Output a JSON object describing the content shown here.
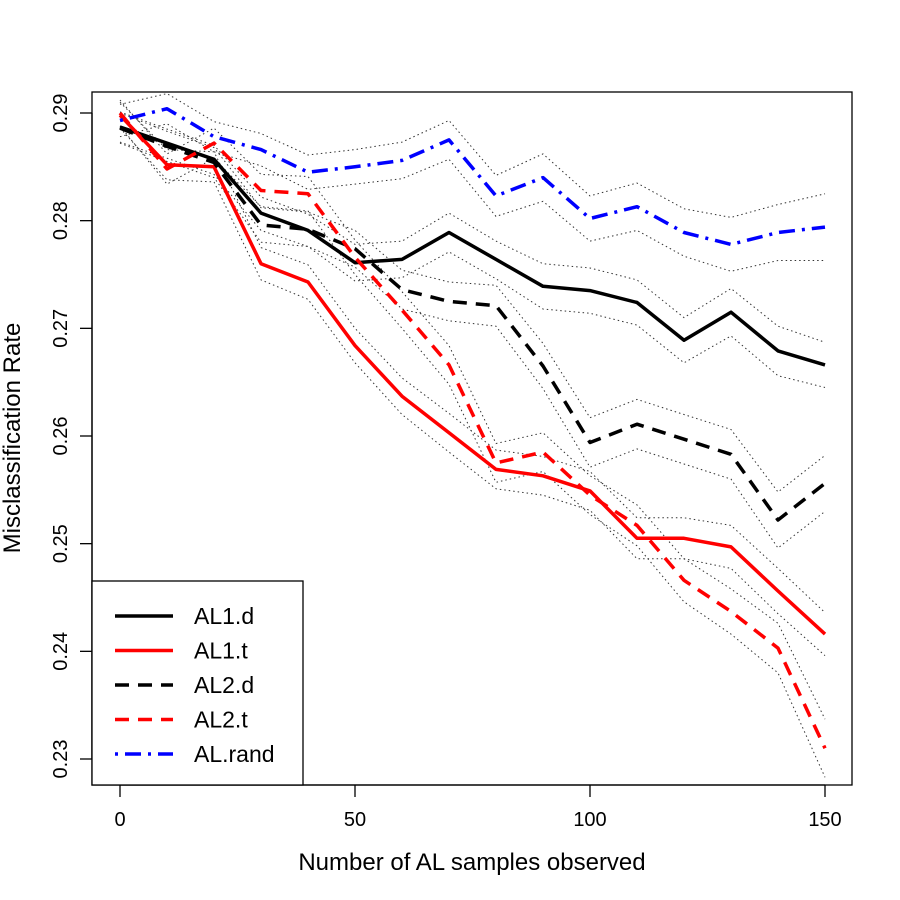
{
  "chart_data": {
    "type": "line",
    "title": "",
    "xlabel": "Number of AL samples observed",
    "ylabel": "Misclassification Rate",
    "xlim": [
      0,
      150
    ],
    "ylim": [
      0.23,
      0.29
    ],
    "x_ticks": [
      0,
      50,
      100,
      150
    ],
    "y_ticks": [
      0.23,
      0.24,
      0.25,
      0.26,
      0.27,
      0.28,
      0.29
    ],
    "x_tick_labels": [
      "0",
      "50",
      "100",
      "150"
    ],
    "y_tick_labels": [
      "0.23",
      "0.24",
      "0.25",
      "0.26",
      "0.27",
      "0.28",
      "0.29"
    ],
    "grid": false,
    "legend_position": "bottom-left",
    "x": [
      0,
      10,
      20,
      30,
      40,
      50,
      60,
      70,
      80,
      90,
      100,
      110,
      120,
      130,
      140,
      150
    ],
    "series": [
      {
        "name": "AL1.d",
        "color": "#000000",
        "line_style": "solid",
        "values": [
          0.2887,
          0.2872,
          0.2857,
          0.2807,
          0.2791,
          0.2761,
          0.2764,
          0.2789,
          0.2764,
          0.2739,
          0.2735,
          0.2724,
          0.2689,
          0.2715,
          0.2679,
          0.2666
        ],
        "band_upper": [
          0.2901,
          0.2885,
          0.287,
          0.2822,
          0.2806,
          0.2778,
          0.2781,
          0.2807,
          0.2781,
          0.276,
          0.2756,
          0.2745,
          0.271,
          0.2737,
          0.2702,
          0.2687
        ],
        "band_lower": [
          0.2873,
          0.2858,
          0.2843,
          0.2791,
          0.2776,
          0.2744,
          0.2747,
          0.2771,
          0.2746,
          0.2718,
          0.2714,
          0.2703,
          0.2668,
          0.2693,
          0.2656,
          0.2645
        ]
      },
      {
        "name": "AL1.t",
        "color": "#ff0000",
        "line_style": "solid",
        "values": [
          0.2898,
          0.2852,
          0.285,
          0.276,
          0.2743,
          0.2684,
          0.2637,
          0.2603,
          0.2569,
          0.2563,
          0.2549,
          0.2505,
          0.2505,
          0.2497,
          0.2456,
          0.2416
        ],
        "band_upper": [
          0.291,
          0.2866,
          0.2864,
          0.2775,
          0.2759,
          0.27,
          0.2654,
          0.2621,
          0.2587,
          0.2581,
          0.2567,
          0.2524,
          0.2524,
          0.2517,
          0.2477,
          0.2436
        ],
        "band_lower": [
          0.2886,
          0.2838,
          0.2836,
          0.2745,
          0.2727,
          0.2668,
          0.262,
          0.2585,
          0.2551,
          0.2545,
          0.2531,
          0.2486,
          0.2486,
          0.2477,
          0.2435,
          0.2396
        ]
      },
      {
        "name": "AL2.d",
        "color": "#000000",
        "line_style": "dashed",
        "values": [
          0.2886,
          0.2869,
          0.2854,
          0.2796,
          0.2792,
          0.2774,
          0.2736,
          0.2725,
          0.2721,
          0.2665,
          0.2594,
          0.2611,
          0.2597,
          0.2583,
          0.2522,
          0.2556
        ],
        "band_upper": [
          0.29,
          0.2883,
          0.2868,
          0.2812,
          0.2808,
          0.2791,
          0.2754,
          0.2743,
          0.274,
          0.2686,
          0.2617,
          0.2634,
          0.262,
          0.2606,
          0.2548,
          0.2582
        ],
        "band_lower": [
          0.2872,
          0.2855,
          0.284,
          0.278,
          0.2776,
          0.2757,
          0.2718,
          0.2707,
          0.2702,
          0.2644,
          0.2571,
          0.2588,
          0.2574,
          0.256,
          0.2496,
          0.253
        ]
      },
      {
        "name": "AL2.t",
        "color": "#ff0000",
        "line_style": "dashed",
        "values": [
          0.29,
          0.2848,
          0.2872,
          0.2828,
          0.2825,
          0.2766,
          0.2717,
          0.2666,
          0.2575,
          0.2585,
          0.2545,
          0.2517,
          0.2466,
          0.2437,
          0.2403,
          0.231
        ],
        "band_upper": [
          0.2912,
          0.2862,
          0.2886,
          0.2843,
          0.2841,
          0.2782,
          0.2734,
          0.2684,
          0.2593,
          0.2603,
          0.2563,
          0.2536,
          0.2486,
          0.2458,
          0.2426,
          0.2337
        ],
        "band_lower": [
          0.2888,
          0.2834,
          0.2858,
          0.2813,
          0.2809,
          0.275,
          0.27,
          0.2648,
          0.2557,
          0.2567,
          0.2527,
          0.2498,
          0.2446,
          0.2416,
          0.238,
          0.2283
        ]
      },
      {
        "name": "AL.rand",
        "color": "#0000ff",
        "line_style": "dotdash",
        "values": [
          0.2893,
          0.2904,
          0.2878,
          0.2866,
          0.2845,
          0.285,
          0.2856,
          0.2875,
          0.2823,
          0.284,
          0.2802,
          0.2813,
          0.2789,
          0.2778,
          0.2789,
          0.2794
        ],
        "band_upper": [
          0.2908,
          0.2918,
          0.2892,
          0.2881,
          0.2861,
          0.2866,
          0.2873,
          0.2893,
          0.2842,
          0.2862,
          0.2823,
          0.2835,
          0.2811,
          0.2803,
          0.2815,
          0.2825
        ],
        "band_lower": [
          0.2878,
          0.289,
          0.2864,
          0.2851,
          0.2829,
          0.2834,
          0.2839,
          0.2857,
          0.2804,
          0.2818,
          0.2781,
          0.2791,
          0.2767,
          0.2753,
          0.2763,
          0.2763
        ]
      }
    ]
  }
}
